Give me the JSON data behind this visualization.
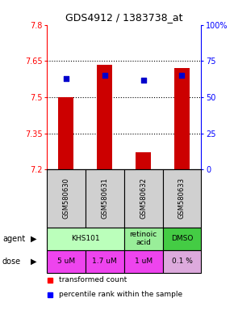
{
  "title": "GDS4912 / 1383738_at",
  "samples": [
    "GSM580630",
    "GSM580631",
    "GSM580632",
    "GSM580633"
  ],
  "bar_values": [
    7.5,
    7.635,
    7.27,
    7.62
  ],
  "bar_base": 7.2,
  "dot_percentiles": [
    63,
    65,
    62,
    65
  ],
  "ylim_left": [
    7.2,
    7.8
  ],
  "ylim_right": [
    0,
    100
  ],
  "yticks_left": [
    7.2,
    7.35,
    7.5,
    7.65,
    7.8
  ],
  "ytick_labels_left": [
    "7.2",
    "7.35",
    "7.5",
    "7.65",
    "7.8"
  ],
  "yticks_right": [
    0,
    25,
    50,
    75,
    100
  ],
  "ytick_labels_right": [
    "0",
    "25",
    "50",
    "75",
    "100%"
  ],
  "hlines": [
    7.35,
    7.5,
    7.65
  ],
  "bar_color": "#cc0000",
  "dot_color": "#0000cc",
  "agent_groups": [
    {
      "cols": [
        0,
        1
      ],
      "text": "KHS101",
      "color": "#bbffbb"
    },
    {
      "cols": [
        2
      ],
      "text": "retinoic\nacid",
      "color": "#99ee99"
    },
    {
      "cols": [
        3
      ],
      "text": "DMSO",
      "color": "#44cc44"
    }
  ],
  "dose_labels": [
    "5 uM",
    "1.7 uM",
    "1 uM",
    "0.1 %"
  ],
  "dose_colors": [
    "#ee44ee",
    "#ee44ee",
    "#ee44ee",
    "#ddaadd"
  ],
  "sample_bg_color": "#d0d0d0",
  "legend_red": "transformed count",
  "legend_blue": "percentile rank within the sample"
}
